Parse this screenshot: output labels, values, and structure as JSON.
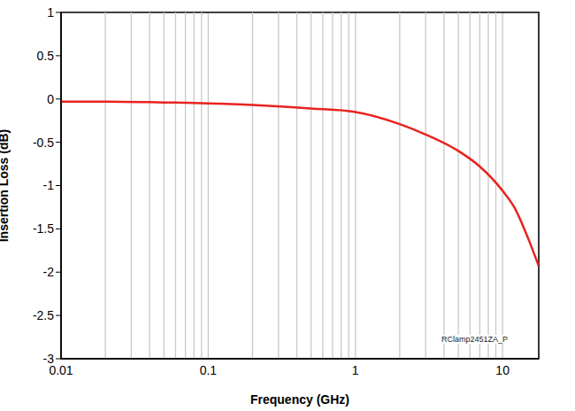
{
  "chart_data": {
    "type": "line",
    "x_label": "Frequency (GHz)",
    "y_label": "Insertion Loss (dB)",
    "annotation": "RClamp2451ZA_P",
    "log": "x",
    "grid": true,
    "color": "#e8231f",
    "xlim": [
      0.01,
      17.6
    ],
    "xticks": [
      0.01,
      0.1,
      1,
      10
    ],
    "ylim": [
      -3,
      1
    ],
    "yticks": [
      -3,
      -2.5,
      -2,
      -1.5,
      -1,
      -0.5,
      0,
      0.5,
      1
    ],
    "x": [
      0.01,
      0.02,
      0.05,
      0.1,
      0.2,
      0.5,
      1,
      2,
      3,
      5,
      7,
      10,
      12,
      15,
      17.6
    ],
    "values": [
      -0.03,
      -0.03,
      -0.04,
      -0.05,
      -0.07,
      -0.11,
      -0.15,
      -0.29,
      -0.41,
      -0.6,
      -0.78,
      -1.06,
      -1.25,
      -1.62,
      -1.93
    ]
  }
}
